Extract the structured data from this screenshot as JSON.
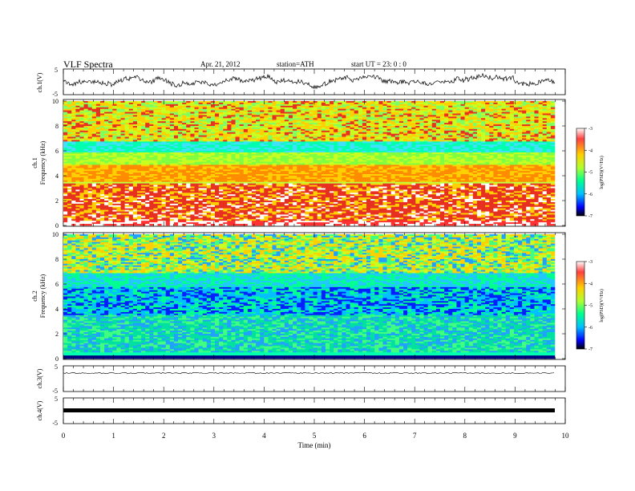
{
  "header": {
    "title": "VLF  Spectra",
    "date": "Apr. 21, 2012",
    "station": "station=ATH",
    "start": "start  UT  =   23: 0  : 0"
  },
  "chart_data": [
    {
      "type": "line",
      "panel": "ch1-waveform",
      "ylabel": "ch.1(V)",
      "yticks": [
        "5",
        "-5"
      ],
      "ylim": [
        -5,
        5
      ]
    },
    {
      "type": "heatmap",
      "panel": "ch1-spectrogram",
      "ylabel_top": "ch.1",
      "ylabel": "Frequency  (kHz)",
      "yticks": [
        "0",
        "2",
        "4",
        "6",
        "8",
        "10"
      ],
      "ylim": [
        0,
        10
      ],
      "colorbar": {
        "label": "log(PSD)(V²/Hz)",
        "ticks": [
          "-3",
          "-4",
          "-5",
          "-6",
          "-7"
        ],
        "range": [
          -7,
          -3
        ]
      }
    },
    {
      "type": "heatmap",
      "panel": "ch2-spectrogram",
      "ylabel_top": "ch.2",
      "ylabel": "Frequency  (kHz)",
      "yticks": [
        "0",
        "2",
        "4",
        "6",
        "8",
        "10"
      ],
      "ylim": [
        0,
        10
      ],
      "colorbar": {
        "label": "log(PSD)(V²/Hz)",
        "ticks": [
          "-3",
          "-4",
          "-5",
          "-6",
          "-7"
        ],
        "range": [
          -7,
          -3
        ]
      }
    },
    {
      "type": "line",
      "panel": "ch3-waveform",
      "ylabel": "ch.3(V)",
      "yticks": [
        "5",
        "-5"
      ],
      "ylim": [
        -5,
        5
      ]
    },
    {
      "type": "line",
      "panel": "ch4-waveform",
      "ylabel": "ch.4(V)",
      "yticks": [
        "5",
        "-5"
      ],
      "ylim": [
        -5,
        5
      ]
    }
  ],
  "xaxis": {
    "label": "Time  (min)",
    "ticks": [
      "0",
      "1",
      "2",
      "3",
      "4",
      "5",
      "6",
      "7",
      "8",
      "9",
      "10"
    ],
    "xlim": [
      0,
      10
    ]
  }
}
